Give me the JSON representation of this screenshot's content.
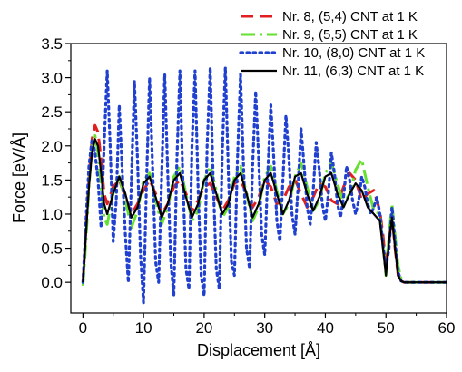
{
  "chart_data": {
    "type": "line",
    "xlabel": "Displacement [Å]",
    "ylabel": "Force [eV/Å]",
    "xlim": [
      -2,
      60
    ],
    "ylim": [
      -0.45,
      3.5
    ],
    "xticks": [
      0,
      10,
      20,
      30,
      40,
      50,
      60
    ],
    "xtick_labels": [
      "0",
      "10",
      "20",
      "30",
      "40",
      "50",
      "60"
    ],
    "yticks": [
      0.0,
      0.5,
      1.0,
      1.5,
      2.0,
      2.5,
      3.0,
      3.5
    ],
    "ytick_labels": [
      "0.0",
      "0.5",
      "1.0",
      "1.5",
      "2.0",
      "2.5",
      "3.0",
      "3.5"
    ],
    "legend_position": "top-right",
    "grid": false,
    "series": [
      {
        "name": "Nr. 8, (5,4) CNT at 1 K",
        "color": "#e02020",
        "style": "dashed",
        "x": [
          0,
          0.5,
          1.0,
          1.5,
          2.0,
          2.5,
          3.0,
          3.5,
          4.0,
          5.0,
          6.0,
          7.0,
          8.0,
          9.0,
          10.0,
          11.0,
          12.0,
          13.0,
          14.0,
          15.0,
          16.0,
          17.0,
          18.0,
          19.0,
          20.0,
          21.0,
          22.0,
          23.0,
          24.0,
          25.0,
          26.0,
          27.0,
          28.0,
          29.0,
          30.0,
          31.0,
          32.0,
          33.0,
          34.0,
          35.0,
          36.0,
          37.0,
          38.0,
          39.0,
          40.0,
          41.0,
          42.0,
          43.0,
          44.0,
          45.0,
          46.0,
          47.0,
          48.0,
          49.0,
          49.5,
          50.0,
          50.5,
          51.0,
          51.5,
          52.0,
          52.5,
          53.0,
          54.0,
          56.0,
          58.0,
          60.0
        ],
        "y": [
          0.0,
          0.8,
          1.5,
          2.1,
          2.3,
          2.2,
          1.8,
          1.3,
          1.15,
          1.4,
          1.5,
          1.25,
          1.0,
          1.15,
          1.35,
          1.5,
          1.3,
          1.0,
          1.15,
          1.4,
          1.5,
          1.3,
          1.05,
          1.2,
          1.4,
          1.45,
          1.25,
          1.05,
          1.2,
          1.45,
          1.5,
          1.3,
          1.1,
          1.25,
          1.5,
          1.4,
          1.15,
          1.2,
          1.4,
          1.5,
          1.3,
          1.1,
          1.25,
          1.45,
          1.4,
          1.2,
          1.15,
          1.4,
          1.6,
          1.5,
          1.2,
          1.3,
          1.35,
          1.05,
          0.7,
          0.25,
          0.6,
          1.0,
          0.5,
          0.1,
          0.02,
          0.0,
          0.0,
          0.0,
          0.0,
          0.0
        ]
      },
      {
        "name": "Nr. 9, (5,5) CNT at 1 K",
        "color": "#66e030",
        "style": "dashdot",
        "x": [
          0,
          0.5,
          1.0,
          1.5,
          2.0,
          2.5,
          3.0,
          3.5,
          4.0,
          5.0,
          6.0,
          7.0,
          8.0,
          9.0,
          10.0,
          11.0,
          12.0,
          13.0,
          14.0,
          15.0,
          16.0,
          17.0,
          18.0,
          19.0,
          20.0,
          21.0,
          22.0,
          23.0,
          24.0,
          25.0,
          26.0,
          27.0,
          28.0,
          29.0,
          30.0,
          31.0,
          32.0,
          33.0,
          34.0,
          35.0,
          36.0,
          37.0,
          38.0,
          39.0,
          40.0,
          41.0,
          42.0,
          43.0,
          44.0,
          45.0,
          46.0,
          47.0,
          48.0,
          49.0,
          49.5,
          50.0,
          50.5,
          51.0,
          51.5,
          52.0,
          52.5,
          53.0,
          54.0,
          56.0,
          58.0,
          60.0
        ],
        "y": [
          -0.05,
          0.6,
          1.4,
          2.0,
          2.15,
          1.9,
          1.4,
          0.95,
          0.85,
          1.3,
          1.55,
          1.2,
          0.8,
          1.05,
          1.5,
          1.6,
          1.2,
          0.85,
          1.1,
          1.55,
          1.7,
          1.3,
          0.9,
          1.05,
          1.5,
          1.7,
          1.35,
          0.95,
          1.1,
          1.55,
          1.7,
          1.3,
          0.9,
          1.1,
          1.55,
          1.7,
          1.35,
          1.0,
          1.15,
          1.55,
          1.75,
          1.4,
          1.05,
          1.2,
          1.6,
          1.75,
          1.45,
          1.15,
          1.3,
          1.65,
          1.8,
          1.4,
          1.05,
          1.0,
          0.55,
          0.1,
          0.7,
          1.15,
          0.7,
          0.25,
          0.05,
          0.0,
          0.0,
          0.0,
          0.0,
          0.0
        ]
      },
      {
        "name": "Nr. 10, (8,0) CNT at 1 K",
        "color": "#2040d0",
        "style": "dotted",
        "x": [
          0,
          0.5,
          1.0,
          1.5,
          2.0,
          2.5,
          3.0,
          3.5,
          4.0,
          4.5,
          5.0,
          5.5,
          6.0,
          6.5,
          7.0,
          7.5,
          8.0,
          8.5,
          9.0,
          9.5,
          10.0,
          10.5,
          11.0,
          11.5,
          12.0,
          12.5,
          13.0,
          13.5,
          14.0,
          14.5,
          15.0,
          15.5,
          16.0,
          16.5,
          17.0,
          17.5,
          18.0,
          18.5,
          19.0,
          19.5,
          20.0,
          20.5,
          21.0,
          21.5,
          22.0,
          22.5,
          23.0,
          23.5,
          24.0,
          24.5,
          25.0,
          25.5,
          26.0,
          26.5,
          27.0,
          27.5,
          28.0,
          28.5,
          29.0,
          29.5,
          30.0,
          30.5,
          31.0,
          31.5,
          32.0,
          32.5,
          33.0,
          33.5,
          34.0,
          34.5,
          35.0,
          35.5,
          36.0,
          36.5,
          37.0,
          37.5,
          38.0,
          38.5,
          39.0,
          39.5,
          40.0,
          40.5,
          41.0,
          41.5,
          42.0,
          42.5,
          43.0,
          43.5,
          44.0,
          44.5,
          45.0,
          45.5,
          46.0,
          46.5,
          47.0,
          47.5,
          48.0,
          48.5,
          49.0,
          49.5,
          50.0,
          50.5,
          51.0,
          51.5,
          52.0,
          52.5,
          53.0,
          54.0,
          56.0,
          58.0,
          60.0
        ],
        "y": [
          0.0,
          0.9,
          1.7,
          2.1,
          1.9,
          1.5,
          0.8,
          2.0,
          3.1,
          2.0,
          0.6,
          1.2,
          2.6,
          1.6,
          0.7,
          0.0,
          1.5,
          2.95,
          1.8,
          0.4,
          -0.3,
          1.5,
          3.0,
          1.7,
          0.3,
          0.0,
          1.6,
          3.05,
          1.6,
          0.3,
          -0.2,
          1.8,
          3.1,
          1.5,
          0.2,
          -0.1,
          2.0,
          3.1,
          1.4,
          0.1,
          -0.2,
          2.0,
          3.15,
          1.5,
          0.2,
          -0.1,
          1.9,
          3.15,
          1.6,
          0.3,
          0.1,
          1.8,
          3.05,
          1.7,
          0.5,
          0.2,
          1.7,
          2.8,
          1.8,
          0.7,
          0.4,
          1.6,
          2.6,
          1.8,
          0.9,
          0.6,
          1.5,
          2.45,
          1.8,
          1.0,
          0.7,
          1.4,
          2.25,
          1.7,
          1.1,
          0.85,
          1.35,
          2.05,
          1.65,
          1.15,
          0.9,
          1.3,
          1.9,
          1.6,
          1.15,
          0.95,
          1.25,
          1.7,
          1.5,
          1.2,
          1.0,
          1.2,
          1.55,
          1.4,
          1.15,
          1.0,
          1.1,
          1.25,
          1.0,
          0.55,
          0.2,
          0.5,
          1.1,
          0.6,
          0.15,
          0.02,
          0.0,
          0.0,
          0.0,
          0.0,
          0.0
        ]
      },
      {
        "name": "Nr. 11, (6,3) CNT at 1 K",
        "color": "#000000",
        "style": "solid",
        "x": [
          0,
          0.5,
          1.0,
          1.5,
          2.0,
          2.5,
          3.0,
          3.5,
          4.0,
          5.0,
          6.0,
          7.0,
          8.0,
          9.0,
          10.0,
          11.0,
          12.0,
          13.0,
          14.0,
          15.0,
          16.0,
          17.0,
          18.0,
          19.0,
          20.0,
          21.0,
          22.0,
          23.0,
          24.0,
          25.0,
          26.0,
          27.0,
          28.0,
          29.0,
          30.0,
          31.0,
          32.0,
          33.0,
          34.0,
          35.0,
          36.0,
          37.0,
          38.0,
          39.0,
          40.0,
          41.0,
          42.0,
          43.0,
          44.0,
          45.0,
          46.0,
          47.0,
          48.0,
          49.0,
          49.5,
          50.0,
          50.5,
          51.0,
          51.5,
          52.0,
          52.5,
          53.0,
          54.0,
          56.0,
          58.0,
          60.0
        ],
        "y": [
          0.0,
          0.7,
          1.4,
          1.9,
          2.1,
          2.0,
          1.6,
          1.15,
          1.0,
          1.3,
          1.55,
          1.3,
          0.95,
          1.1,
          1.45,
          1.55,
          1.25,
          0.95,
          1.15,
          1.5,
          1.6,
          1.25,
          0.95,
          1.15,
          1.5,
          1.6,
          1.3,
          1.0,
          1.15,
          1.5,
          1.6,
          1.3,
          0.95,
          1.15,
          1.5,
          1.6,
          1.3,
          1.0,
          1.2,
          1.55,
          1.6,
          1.3,
          1.05,
          1.25,
          1.55,
          1.6,
          1.3,
          1.1,
          1.3,
          1.45,
          1.35,
          1.1,
          1.0,
          0.9,
          0.5,
          0.1,
          0.6,
          0.95,
          0.5,
          0.1,
          0.02,
          0.0,
          0.0,
          0.0,
          0.0,
          0.0
        ]
      }
    ]
  }
}
